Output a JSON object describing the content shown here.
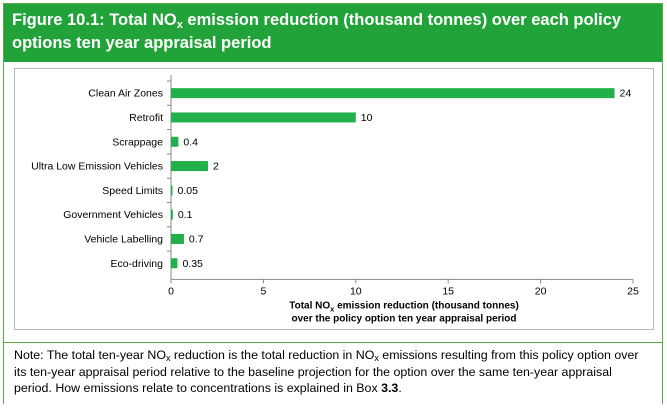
{
  "figure": {
    "title_pre": "Figure 10.1: Total NO",
    "title_sub": "x",
    "title_post": " emission reduction (thousand tonnes) over each policy options ten year appraisal period"
  },
  "chart_data": {
    "type": "bar",
    "orientation": "horizontal",
    "categories": [
      "Clean Air Zones",
      "Retrofit",
      "Scrappage",
      "Ultra Low Emission Vehicles",
      "Speed Limits",
      "Government Vehicles",
      "Vehicle Labelling",
      "Eco-driving"
    ],
    "values": [
      24,
      10,
      0.4,
      2,
      0.05,
      0.1,
      0.7,
      0.35
    ],
    "value_labels": [
      "24",
      "10",
      "0.4",
      "2",
      "0.05",
      "0.1",
      "0.7",
      "0.35"
    ],
    "xlim": [
      0,
      25
    ],
    "xticks": [
      0,
      5,
      10,
      15,
      20,
      25
    ],
    "xlabel_line1_pre": "Total NO",
    "xlabel_line1_sub": "x",
    "xlabel_line1_post": " emission reduction (thousand tonnes)",
    "xlabel_line2": "over the policy option ten year appraisal period",
    "bar_color": "#22b04b",
    "grid": false,
    "legend": false
  },
  "note": {
    "part1": "Note: The total ten-year NO",
    "sub1": "x",
    "part2": " reduction is the total reduction in NO",
    "sub2": "x",
    "part3": " emissions resulting from this policy option over its ten-year appraisal period relative to the baseline projection for the option over the same ten-year appraisal period. How emissions relate to concentrations is explained in Box ",
    "box_ref": "3.3",
    "part4": "."
  },
  "colors": {
    "header_bg": "#22a33a",
    "border": "#5fa83f",
    "bar": "#22b04b"
  }
}
